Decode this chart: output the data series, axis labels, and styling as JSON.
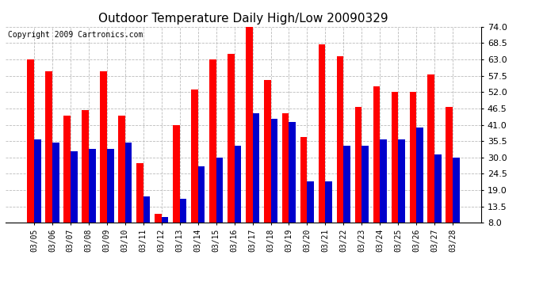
{
  "title": "Outdoor Temperature Daily High/Low 20090329",
  "copyright": "Copyright 2009 Cartronics.com",
  "categories": [
    "03/05",
    "03/06",
    "03/07",
    "03/08",
    "03/09",
    "03/10",
    "03/11",
    "03/12",
    "03/13",
    "03/14",
    "03/15",
    "03/16",
    "03/17",
    "03/18",
    "03/19",
    "03/20",
    "03/21",
    "03/22",
    "03/23",
    "03/24",
    "03/25",
    "03/26",
    "03/27",
    "03/28"
  ],
  "highs": [
    63.0,
    59.0,
    44.0,
    46.0,
    59.0,
    44.0,
    28.0,
    11.0,
    41.0,
    53.0,
    63.0,
    65.0,
    75.0,
    56.0,
    45.0,
    37.0,
    68.0,
    64.0,
    47.0,
    54.0,
    52.0,
    52.0,
    58.0,
    47.0
  ],
  "lows": [
    36.0,
    35.0,
    32.0,
    33.0,
    33.0,
    35.0,
    17.0,
    10.0,
    16.0,
    27.0,
    30.0,
    34.0,
    45.0,
    43.0,
    42.0,
    22.0,
    22.0,
    34.0,
    34.0,
    36.0,
    36.0,
    40.0,
    31.0,
    30.0
  ],
  "high_color": "#ff0000",
  "low_color": "#0000cc",
  "ylim": [
    8.0,
    74.0
  ],
  "yticks": [
    8.0,
    13.5,
    19.0,
    24.5,
    30.0,
    35.5,
    41.0,
    46.5,
    52.0,
    57.5,
    63.0,
    68.5,
    74.0
  ],
  "bg_color": "#ffffff",
  "plot_bg": "#ffffff",
  "grid_color": "#bbbbbb",
  "title_fontsize": 11,
  "copyright_fontsize": 7
}
